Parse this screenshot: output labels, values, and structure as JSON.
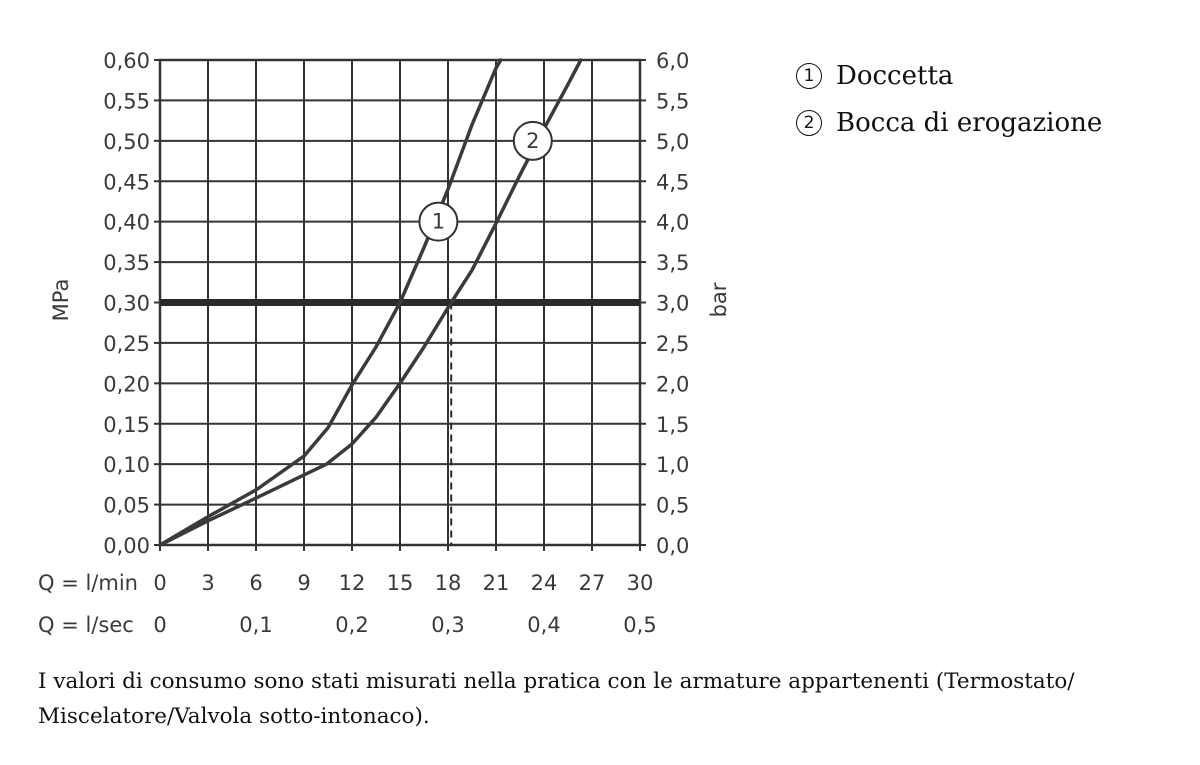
{
  "chart_data": {
    "type": "line",
    "ylabel_left": "MPa",
    "ylabel_right": "bar",
    "x_label_lmin": "Q = l/min",
    "x_label_lsec": "Q = l/sec",
    "xlim": [
      0,
      30
    ],
    "ylim": [
      0,
      0.6
    ],
    "grid": true,
    "x_ticks_lmin": [
      "0",
      "3",
      "6",
      "9",
      "12",
      "15",
      "18",
      "21",
      "24",
      "27",
      "30"
    ],
    "x_ticks_lsec": [
      {
        "value": 0,
        "label": "0"
      },
      {
        "value": 6,
        "label": "0,1"
      },
      {
        "value": 12,
        "label": "0,2"
      },
      {
        "value": 18,
        "label": "0,3"
      },
      {
        "value": 24,
        "label": "0,4"
      },
      {
        "value": 30,
        "label": "0,5"
      }
    ],
    "y_ticks_left": [
      "0,00",
      "0,05",
      "0,10",
      "0,15",
      "0,20",
      "0,25",
      "0,30",
      "0,35",
      "0,40",
      "0,45",
      "0,50",
      "0,55",
      "0,60"
    ],
    "y_ticks_right": [
      "0,0",
      "0,5",
      "1,0",
      "1,5",
      "2,0",
      "2,5",
      "3,0",
      "3,5",
      "4,0",
      "4,5",
      "5,0",
      "5,5",
      "6,0"
    ],
    "reference_line": {
      "y": 0.3
    },
    "dashed_drops": [
      15.0,
      18.2
    ],
    "series": [
      {
        "name": "1",
        "x": [
          0,
          3,
          6,
          9,
          10.5,
          12,
          13.5,
          15.0,
          16.5,
          18.0,
          19.5,
          21.0,
          21.3
        ],
        "y": [
          0,
          0.035,
          0.068,
          0.11,
          0.145,
          0.198,
          0.245,
          0.3,
          0.368,
          0.44,
          0.52,
          0.59,
          0.6
        ]
      },
      {
        "name": "2",
        "x": [
          0,
          3,
          6,
          10.4,
          12,
          13.5,
          15.0,
          16.5,
          18.2,
          19.5,
          21.0,
          22.5,
          24.0,
          25.5,
          26.3
        ],
        "y": [
          0,
          0.03,
          0.058,
          0.1,
          0.125,
          0.158,
          0.2,
          0.245,
          0.3,
          0.34,
          0.398,
          0.458,
          0.515,
          0.57,
          0.6
        ]
      }
    ],
    "markers": [
      {
        "label": "1",
        "x": 17.4,
        "y": 0.4
      },
      {
        "label": "2",
        "x": 23.3,
        "y": 0.5
      }
    ]
  },
  "legend": [
    {
      "num": "1",
      "label": "Doccetta"
    },
    {
      "num": "2",
      "label": "Bocca di erogazione"
    }
  ],
  "footnote": "I valori di consumo sono stati misurati nella pratica con le armature appartenenti (Termostato/ Miscelatore/Valvola sotto-intonaco)."
}
